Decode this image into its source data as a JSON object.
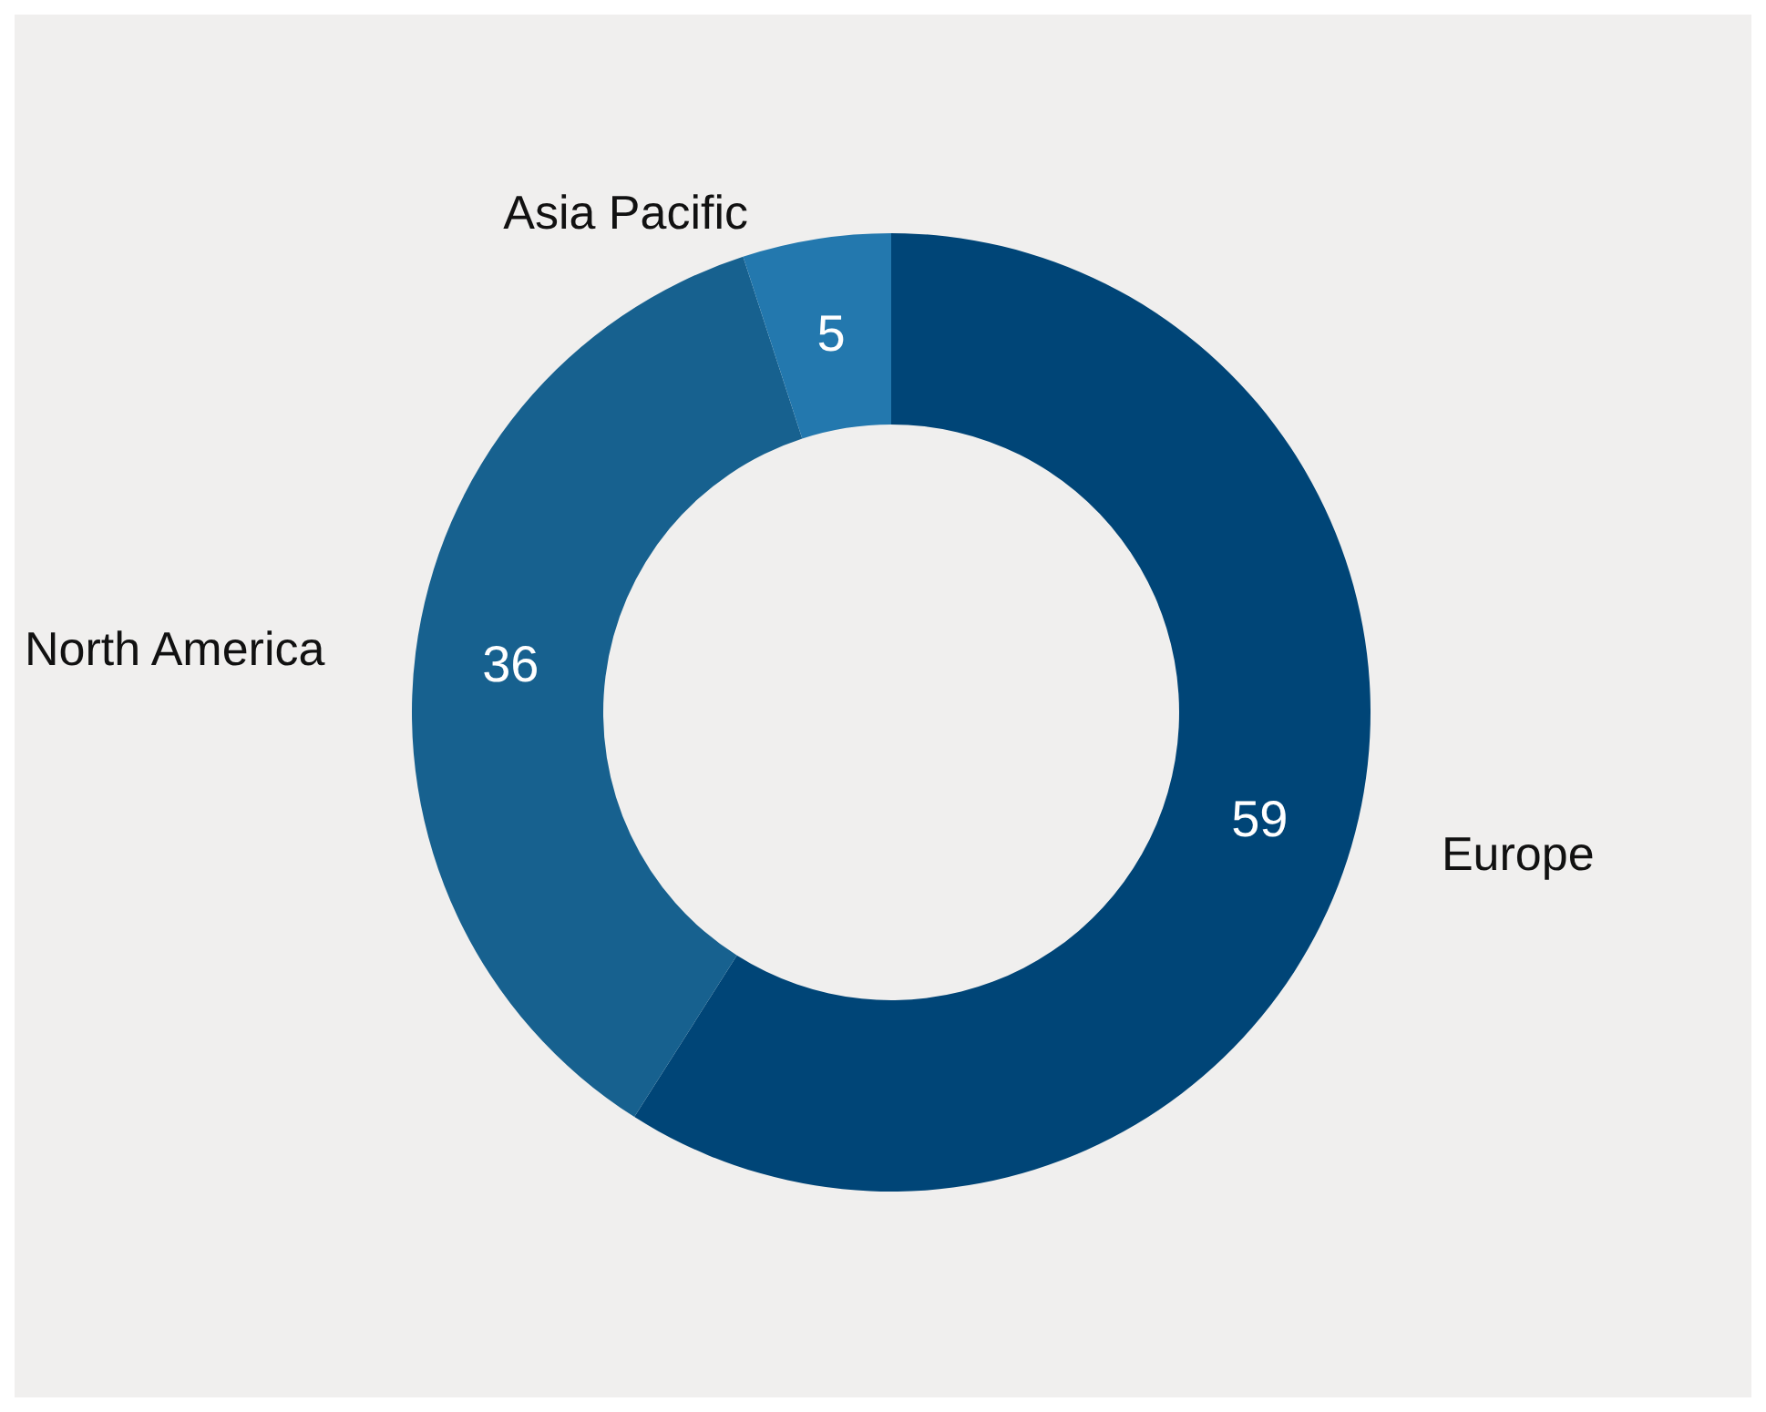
{
  "chart_data": {
    "type": "donut",
    "categories": [
      "Europe",
      "North America",
      "Asia Pacific"
    ],
    "values": [
      59,
      36,
      5
    ],
    "colors": [
      "#004577",
      "#17618f",
      "#2378ae"
    ],
    "data_labels": true,
    "legend": false
  }
}
